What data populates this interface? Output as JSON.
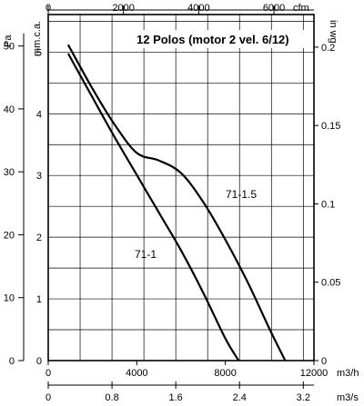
{
  "chart_data": {
    "type": "line",
    "title": "12 Polos (motor 2 vel. 6/12)",
    "x_axis_bottom": {
      "unit": "m3/h",
      "range": [
        0,
        12000
      ],
      "ticks": [
        "0",
        "4000",
        "8000",
        "12000"
      ]
    },
    "x_axis_bottom2": {
      "unit": "m3/s",
      "ticks": [
        "0",
        "0.8",
        "1.6",
        "2.4",
        "3.2"
      ]
    },
    "x_axis_top": {
      "unit": "cfm",
      "ticks": [
        "0",
        "2000",
        "4000",
        "6000"
      ]
    },
    "y_axis_left_outer": {
      "unit": "Pa",
      "range": [
        0,
        55
      ],
      "ticks": [
        "0",
        "10",
        "20",
        "30",
        "40",
        "50"
      ]
    },
    "y_axis_left_inner": {
      "unit": "mm.c.a.",
      "ticks": [
        "0",
        "1",
        "2",
        "3",
        "4",
        "5"
      ]
    },
    "y_axis_right": {
      "unit": "in wg",
      "ticks": [
        "0",
        "0.05",
        "0.1",
        "0.15",
        "0.2"
      ]
    },
    "grid": true,
    "series": [
      {
        "name": "71-1",
        "points": [
          [
            900,
            48.8
          ],
          [
            2000,
            41.8
          ],
          [
            3000,
            35.5
          ],
          [
            4000,
            29.5
          ],
          [
            5000,
            23.5
          ],
          [
            6000,
            17.5
          ],
          [
            7000,
            10.8
          ],
          [
            8000,
            3.5
          ],
          [
            8600,
            0
          ]
        ]
      },
      {
        "name": "71-1.5",
        "points": [
          [
            900,
            50.2
          ],
          [
            2000,
            43.2
          ],
          [
            3000,
            37.5
          ],
          [
            4000,
            33.0
          ],
          [
            5000,
            31.8
          ],
          [
            6000,
            29.8
          ],
          [
            7000,
            25.2
          ],
          [
            8000,
            19.2
          ],
          [
            9000,
            12.5
          ],
          [
            10000,
            5.0
          ],
          [
            10700,
            0
          ]
        ]
      }
    ]
  }
}
